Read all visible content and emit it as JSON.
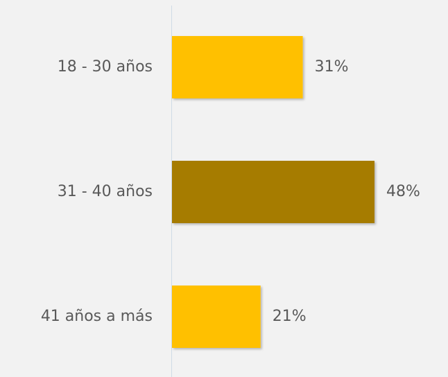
{
  "chart_data": {
    "type": "bar",
    "orientation": "horizontal",
    "categories": [
      "18 - 30 años",
      "31 - 40 años",
      "41 años a más"
    ],
    "values": [
      31,
      48,
      21
    ],
    "value_labels": [
      "31%",
      "48%",
      "21%"
    ],
    "colors": [
      "#FFC000",
      "#A67C00",
      "#FFC000"
    ]
  }
}
